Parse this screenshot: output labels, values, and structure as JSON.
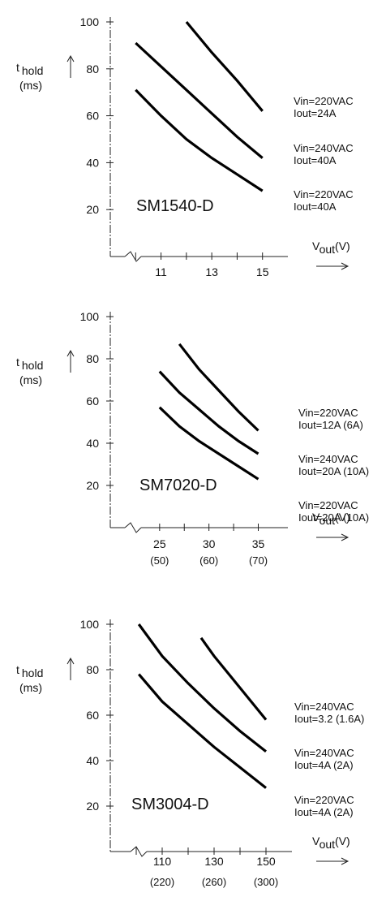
{
  "chart_data": [
    {
      "type": "line",
      "title": "SM1540-D",
      "ylabel_main": "t",
      "ylabel_sub": "hold",
      "ylabel_unit": "(ms)",
      "xlabel_main": "V",
      "xlabel_sub": "out",
      "xlabel_unit": "(V)",
      "xlim": [
        9,
        16
      ],
      "ylim": [
        0,
        100
      ],
      "x_ticks": [
        10,
        11,
        12,
        13,
        14,
        15
      ],
      "x_tick_labels": [
        {
          "x": 11,
          "label": "11"
        },
        {
          "x": 13,
          "label": "13"
        },
        {
          "x": 15,
          "label": "15"
        }
      ],
      "y_ticks": [
        20,
        40,
        60,
        80,
        100
      ],
      "y_tick_labels": [
        "20",
        "40",
        "60",
        "80",
        "100"
      ],
      "series": [
        {
          "x": [
            12,
            13,
            14,
            15
          ],
          "y": [
            100,
            87,
            75,
            62
          ]
        },
        {
          "x": [
            10,
            11,
            12,
            13,
            14,
            15
          ],
          "y": [
            91,
            81,
            71,
            61,
            51,
            42
          ]
        },
        {
          "x": [
            10,
            11,
            12,
            13,
            14,
            15
          ],
          "y": [
            71,
            60,
            50,
            42,
            35,
            28
          ]
        }
      ],
      "annotations": [
        {
          "line1": "Vin=220VAC",
          "line2": "Iout=24A"
        },
        {
          "line1": "Vin=240VAC",
          "line2": "Iout=40A"
        },
        {
          "line1": "Vin=220VAC",
          "line2": "Iout=40A"
        }
      ]
    },
    {
      "type": "line",
      "title": "SM7020-D",
      "ylabel_main": "t",
      "ylabel_sub": "hold",
      "ylabel_unit": "(ms)",
      "xlabel_main": "V",
      "xlabel_sub": "out",
      "xlabel_unit": "(V)",
      "xlim": [
        20,
        38
      ],
      "ylim": [
        0,
        100
      ],
      "x_ticks": [
        25,
        27.5,
        30,
        32.5,
        35
      ],
      "x_tick_labels": [
        {
          "x": 25,
          "label": "25",
          "sub": "(50)"
        },
        {
          "x": 30,
          "label": "30",
          "sub": "(60)"
        },
        {
          "x": 35,
          "label": "35",
          "sub": "(70)"
        }
      ],
      "y_ticks": [
        20,
        40,
        60,
        80,
        100
      ],
      "y_tick_labels": [
        "20",
        "40",
        "60",
        "80",
        "100"
      ],
      "series": [
        {
          "x": [
            27,
            29,
            31,
            33,
            35
          ],
          "y": [
            87,
            75,
            65,
            55,
            46
          ]
        },
        {
          "x": [
            25,
            27,
            29,
            31,
            33,
            35
          ],
          "y": [
            74,
            64,
            56,
            48,
            41,
            35
          ]
        },
        {
          "x": [
            25,
            27,
            29,
            31,
            33,
            35
          ],
          "y": [
            57,
            48,
            41,
            35,
            29,
            23
          ]
        }
      ],
      "annotations": [
        {
          "line1": "Vin=220VAC",
          "line2": "Iout=12A (6A)"
        },
        {
          "line1": "Vin=240VAC",
          "line2": "Iout=20A (10A)"
        },
        {
          "line1": "Vin=220VAC",
          "line2": "Iout=20A (10A)"
        }
      ]
    },
    {
      "type": "line",
      "title": "SM3004-D",
      "ylabel_main": "t",
      "ylabel_sub": "hold",
      "ylabel_unit": "(ms)",
      "xlabel_main": "V",
      "xlabel_sub": "out",
      "xlabel_unit": "(V)",
      "xlim": [
        90,
        160
      ],
      "ylim": [
        0,
        100
      ],
      "x_ticks": [
        100,
        110,
        120,
        130,
        140,
        150
      ],
      "x_tick_labels": [
        {
          "x": 110,
          "label": "110",
          "sub": "(220)"
        },
        {
          "x": 130,
          "label": "130",
          "sub": "(260)"
        },
        {
          "x": 150,
          "label": "150",
          "sub": "(300)"
        }
      ],
      "y_ticks": [
        20,
        40,
        60,
        80,
        100
      ],
      "y_tick_labels": [
        "20",
        "40",
        "60",
        "80",
        "100"
      ],
      "series": [
        {
          "x": [
            125,
            130,
            135,
            140,
            145,
            150
          ],
          "y": [
            94,
            86,
            79,
            72,
            65,
            58
          ]
        },
        {
          "x": [
            101,
            110,
            120,
            130,
            140,
            150
          ],
          "y": [
            100,
            86,
            74,
            63,
            53,
            44
          ]
        },
        {
          "x": [
            101,
            110,
            120,
            130,
            140,
            150
          ],
          "y": [
            78,
            66,
            56,
            46,
            37,
            28
          ]
        }
      ],
      "annotations": [
        {
          "line1": "Vin=240VAC",
          "line2": "Iout=3.2 (1.6A)"
        },
        {
          "line1": "Vin=240VAC",
          "line2": "Iout=4A (2A)"
        },
        {
          "line1": "Vin=220VAC",
          "line2": "Iout=4A (2A)"
        }
      ]
    }
  ]
}
